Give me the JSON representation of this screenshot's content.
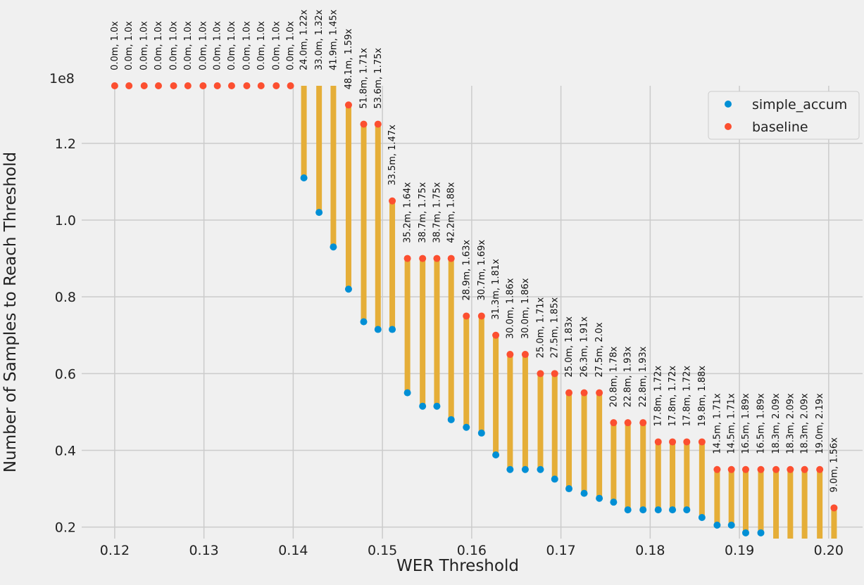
{
  "chart_data": {
    "type": "scatter",
    "xlabel": "WER Threshold",
    "ylabel": "Number of Samples to Reach Threshold",
    "y_multiplier_label": "1e8",
    "xlim": [
      0.1163,
      0.2038
    ],
    "ylim": [
      0.17,
      1.35
    ],
    "y_unit": 100000000,
    "x_ticks": [
      "0.12",
      "0.13",
      "0.14",
      "0.15",
      "0.16",
      "0.17",
      "0.18",
      "0.19",
      "0.20"
    ],
    "y_ticks": [
      "0.2",
      "0.4",
      "0.6",
      "0.8",
      "1.0",
      "1.2"
    ],
    "grid": true,
    "legend_position": "top-right",
    "connector_color": "#e5ae38",
    "series": [
      {
        "name": "simple_accum",
        "color": "#008fd5",
        "points": [
          {
            "x": 0.1412,
            "y": 1.11
          },
          {
            "x": 0.1429,
            "y": 1.02
          },
          {
            "x": 0.1445,
            "y": 0.93
          },
          {
            "x": 0.1462,
            "y": 0.82
          },
          {
            "x": 0.1479,
            "y": 0.735
          },
          {
            "x": 0.1495,
            "y": 0.715
          },
          {
            "x": 0.1511,
            "y": 0.715
          },
          {
            "x": 0.1528,
            "y": 0.55
          },
          {
            "x": 0.1545,
            "y": 0.515
          },
          {
            "x": 0.1561,
            "y": 0.515
          },
          {
            "x": 0.1577,
            "y": 0.48
          },
          {
            "x": 0.1594,
            "y": 0.46
          },
          {
            "x": 0.1611,
            "y": 0.445
          },
          {
            "x": 0.1627,
            "y": 0.388
          },
          {
            "x": 0.1643,
            "y": 0.35
          },
          {
            "x": 0.166,
            "y": 0.35
          },
          {
            "x": 0.1677,
            "y": 0.35
          },
          {
            "x": 0.1693,
            "y": 0.325
          },
          {
            "x": 0.1709,
            "y": 0.3
          },
          {
            "x": 0.1726,
            "y": 0.288
          },
          {
            "x": 0.1743,
            "y": 0.275
          },
          {
            "x": 0.1759,
            "y": 0.265
          },
          {
            "x": 0.1775,
            "y": 0.245
          },
          {
            "x": 0.1792,
            "y": 0.245
          },
          {
            "x": 0.1809,
            "y": 0.245
          },
          {
            "x": 0.1825,
            "y": 0.245
          },
          {
            "x": 0.1841,
            "y": 0.245
          },
          {
            "x": 0.1858,
            "y": 0.225
          },
          {
            "x": 0.1875,
            "y": 0.205
          },
          {
            "x": 0.1891,
            "y": 0.205
          },
          {
            "x": 0.1907,
            "y": 0.185
          },
          {
            "x": 0.1924,
            "y": 0.185
          },
          {
            "x": 0.1941,
            "y": 0.168
          },
          {
            "x": 0.1957,
            "y": 0.168
          },
          {
            "x": 0.1973,
            "y": 0.168
          },
          {
            "x": 0.199,
            "y": 0.16
          },
          {
            "x": 0.2006,
            "y": 0.16
          }
        ]
      },
      {
        "name": "baseline",
        "color": "#fc4f30",
        "points": [
          {
            "x": 0.12,
            "y": 1.35
          },
          {
            "x": 0.1216,
            "y": 1.35
          },
          {
            "x": 0.1233,
            "y": 1.35
          },
          {
            "x": 0.1249,
            "y": 1.35
          },
          {
            "x": 0.1266,
            "y": 1.35
          },
          {
            "x": 0.1282,
            "y": 1.35
          },
          {
            "x": 0.1299,
            "y": 1.35
          },
          {
            "x": 0.1315,
            "y": 1.35
          },
          {
            "x": 0.1331,
            "y": 1.35
          },
          {
            "x": 0.1348,
            "y": 1.35
          },
          {
            "x": 0.1364,
            "y": 1.35
          },
          {
            "x": 0.1381,
            "y": 1.35
          },
          {
            "x": 0.1397,
            "y": 1.35
          },
          {
            "x": 0.1412,
            "y": 1.36
          },
          {
            "x": 0.1429,
            "y": 1.36
          },
          {
            "x": 0.1445,
            "y": 1.36
          },
          {
            "x": 0.1462,
            "y": 1.3
          },
          {
            "x": 0.1479,
            "y": 1.25
          },
          {
            "x": 0.1495,
            "y": 1.25
          },
          {
            "x": 0.1511,
            "y": 1.05
          },
          {
            "x": 0.1528,
            "y": 0.9
          },
          {
            "x": 0.1545,
            "y": 0.9
          },
          {
            "x": 0.1561,
            "y": 0.9
          },
          {
            "x": 0.1577,
            "y": 0.9
          },
          {
            "x": 0.1594,
            "y": 0.75
          },
          {
            "x": 0.1611,
            "y": 0.75
          },
          {
            "x": 0.1627,
            "y": 0.7
          },
          {
            "x": 0.1643,
            "y": 0.65
          },
          {
            "x": 0.166,
            "y": 0.65
          },
          {
            "x": 0.1677,
            "y": 0.6
          },
          {
            "x": 0.1693,
            "y": 0.6
          },
          {
            "x": 0.1709,
            "y": 0.55
          },
          {
            "x": 0.1726,
            "y": 0.55
          },
          {
            "x": 0.1743,
            "y": 0.55
          },
          {
            "x": 0.1759,
            "y": 0.472
          },
          {
            "x": 0.1775,
            "y": 0.472
          },
          {
            "x": 0.1792,
            "y": 0.472
          },
          {
            "x": 0.1809,
            "y": 0.422
          },
          {
            "x": 0.1825,
            "y": 0.422
          },
          {
            "x": 0.1841,
            "y": 0.422
          },
          {
            "x": 0.1858,
            "y": 0.422
          },
          {
            "x": 0.1875,
            "y": 0.35
          },
          {
            "x": 0.1891,
            "y": 0.35
          },
          {
            "x": 0.1907,
            "y": 0.35
          },
          {
            "x": 0.1924,
            "y": 0.35
          },
          {
            "x": 0.1941,
            "y": 0.35
          },
          {
            "x": 0.1957,
            "y": 0.35
          },
          {
            "x": 0.1973,
            "y": 0.35
          },
          {
            "x": 0.199,
            "y": 0.35
          },
          {
            "x": 0.2006,
            "y": 0.25
          }
        ]
      }
    ],
    "annotations": [
      {
        "x": 0.12,
        "text": "0.0m, 1.0x"
      },
      {
        "x": 0.1216,
        "text": "0.0m, 1.0x"
      },
      {
        "x": 0.1233,
        "text": "0.0m, 1.0x"
      },
      {
        "x": 0.1249,
        "text": "0.0m, 1.0x"
      },
      {
        "x": 0.1266,
        "text": "0.0m, 1.0x"
      },
      {
        "x": 0.1282,
        "text": "0.0m, 1.0x"
      },
      {
        "x": 0.1299,
        "text": "0.0m, 1.0x"
      },
      {
        "x": 0.1315,
        "text": "0.0m, 1.0x"
      },
      {
        "x": 0.1331,
        "text": "0.0m, 1.0x"
      },
      {
        "x": 0.1348,
        "text": "0.0m, 1.0x"
      },
      {
        "x": 0.1364,
        "text": "0.0m, 1.0x"
      },
      {
        "x": 0.1381,
        "text": "0.0m, 1.0x"
      },
      {
        "x": 0.1397,
        "text": "0.0m, 1.0x"
      },
      {
        "x": 0.1412,
        "text": "24.0m, 1.22x"
      },
      {
        "x": 0.1429,
        "text": "33.0m, 1.32x"
      },
      {
        "x": 0.1445,
        "text": "41.9m, 1.45x"
      },
      {
        "x": 0.1462,
        "text": "48.1m, 1.59x"
      },
      {
        "x": 0.1479,
        "text": "51.8m, 1.71x"
      },
      {
        "x": 0.1495,
        "text": "53.6m, 1.75x"
      },
      {
        "x": 0.1511,
        "text": "33.5m, 1.47x"
      },
      {
        "x": 0.1528,
        "text": "35.2m, 1.64x"
      },
      {
        "x": 0.1545,
        "text": "38.7m, 1.75x"
      },
      {
        "x": 0.1561,
        "text": "38.7m, 1.75x"
      },
      {
        "x": 0.1577,
        "text": "42.2m, 1.88x"
      },
      {
        "x": 0.1594,
        "text": "28.9m, 1.63x"
      },
      {
        "x": 0.1611,
        "text": "30.7m, 1.69x"
      },
      {
        "x": 0.1627,
        "text": "31.3m, 1.81x"
      },
      {
        "x": 0.1643,
        "text": "30.0m, 1.86x"
      },
      {
        "x": 0.166,
        "text": "30.0m, 1.86x"
      },
      {
        "x": 0.1677,
        "text": "25.0m, 1.71x"
      },
      {
        "x": 0.1693,
        "text": "27.5m, 1.85x"
      },
      {
        "x": 0.1709,
        "text": "25.0m, 1.83x"
      },
      {
        "x": 0.1726,
        "text": "26.3m, 1.91x"
      },
      {
        "x": 0.1743,
        "text": "27.5m, 2.0x"
      },
      {
        "x": 0.1759,
        "text": "20.8m, 1.78x"
      },
      {
        "x": 0.1775,
        "text": "22.8m, 1.93x"
      },
      {
        "x": 0.1792,
        "text": "22.8m, 1.93x"
      },
      {
        "x": 0.1809,
        "text": "17.8m, 1.72x"
      },
      {
        "x": 0.1825,
        "text": "17.8m, 1.72x"
      },
      {
        "x": 0.1841,
        "text": "17.8m, 1.72x"
      },
      {
        "x": 0.1858,
        "text": "19.8m, 1.88x"
      },
      {
        "x": 0.1875,
        "text": "14.5m, 1.71x"
      },
      {
        "x": 0.1891,
        "text": "14.5m, 1.71x"
      },
      {
        "x": 0.1907,
        "text": "16.5m, 1.89x"
      },
      {
        "x": 0.1924,
        "text": "16.5m, 1.89x"
      },
      {
        "x": 0.1941,
        "text": "18.3m, 2.09x"
      },
      {
        "x": 0.1957,
        "text": "18.3m, 2.09x"
      },
      {
        "x": 0.1973,
        "text": "18.3m, 2.09x"
      },
      {
        "x": 0.199,
        "text": "19.0m, 2.19x"
      },
      {
        "x": 0.2006,
        "text": "9.0m, 1.56x"
      }
    ]
  }
}
